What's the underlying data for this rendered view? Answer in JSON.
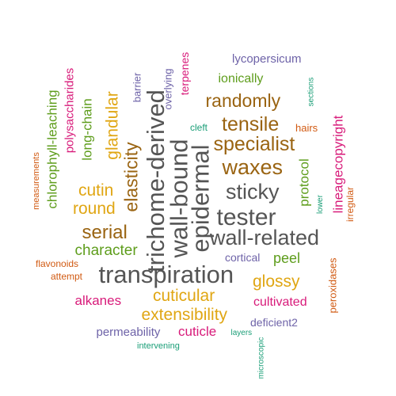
{
  "colors": {
    "dark_gray": "#555555",
    "brown": "#9A6412",
    "gold": "#E0A613",
    "green": "#5E9D1C",
    "magenta": "#D81B7A",
    "purple": "#6E63A8",
    "orange": "#D15A12",
    "teal": "#1A9E77"
  },
  "words": [
    {
      "id": "transpiration",
      "text": "transpiration"
    },
    {
      "id": "trichome-derived",
      "text": "trichome-derived"
    },
    {
      "id": "wall-bound",
      "text": "wall-bound"
    },
    {
      "id": "epidermal",
      "text": "epidermal"
    },
    {
      "id": "tester",
      "text": "tester"
    },
    {
      "id": "wall-related",
      "text": "wall-related"
    },
    {
      "id": "sticky",
      "text": "sticky"
    },
    {
      "id": "waxes",
      "text": "waxes"
    },
    {
      "id": "specialist",
      "text": "specialist"
    },
    {
      "id": "tensile",
      "text": "tensile"
    },
    {
      "id": "randomly",
      "text": "randomly"
    },
    {
      "id": "elasticity",
      "text": "elasticity"
    },
    {
      "id": "serial",
      "text": "serial"
    },
    {
      "id": "cuticular",
      "text": "cuticular"
    },
    {
      "id": "extensibility",
      "text": "extensibility"
    },
    {
      "id": "glossy",
      "text": "glossy"
    },
    {
      "id": "cutin",
      "text": "cutin"
    },
    {
      "id": "round",
      "text": "round"
    },
    {
      "id": "glandular",
      "text": "glandular"
    },
    {
      "id": "character",
      "text": "character"
    },
    {
      "id": "chlorophyll-leaching",
      "text": "chlorophyll-leaching"
    },
    {
      "id": "long-chain",
      "text": "long-chain"
    },
    {
      "id": "polysaccharides",
      "text": "polysaccharides"
    },
    {
      "id": "protocol",
      "text": "protocol"
    },
    {
      "id": "lineagecopyright",
      "text": "lineagecopyright"
    },
    {
      "id": "peel",
      "text": "peel"
    },
    {
      "id": "alkanes",
      "text": "alkanes"
    },
    {
      "id": "cultivated",
      "text": "cultivated"
    },
    {
      "id": "cuticle",
      "text": "cuticle"
    },
    {
      "id": "ionically",
      "text": "ionically"
    },
    {
      "id": "terpenes",
      "text": "terpenes"
    },
    {
      "id": "lycopersicum",
      "text": "lycopersicum"
    },
    {
      "id": "permeability",
      "text": "permeability"
    },
    {
      "id": "deficient2",
      "text": "deficient2"
    },
    {
      "id": "cortical",
      "text": "cortical"
    },
    {
      "id": "peroxidases",
      "text": "peroxidases"
    },
    {
      "id": "overlying",
      "text": "overlying"
    },
    {
      "id": "barrier",
      "text": "barrier"
    },
    {
      "id": "irregular",
      "text": "irregular"
    },
    {
      "id": "hairs",
      "text": "hairs"
    },
    {
      "id": "measurements",
      "text": "measurements"
    },
    {
      "id": "flavonoids",
      "text": "flavonoids"
    },
    {
      "id": "attempt",
      "text": "attempt"
    },
    {
      "id": "cleft",
      "text": "cleft"
    },
    {
      "id": "sections",
      "text": "sections"
    },
    {
      "id": "lower",
      "text": "lower"
    },
    {
      "id": "layers",
      "text": "layers"
    },
    {
      "id": "microscopic",
      "text": "microscopic"
    },
    {
      "id": "intervening",
      "text": "intervening"
    }
  ]
}
